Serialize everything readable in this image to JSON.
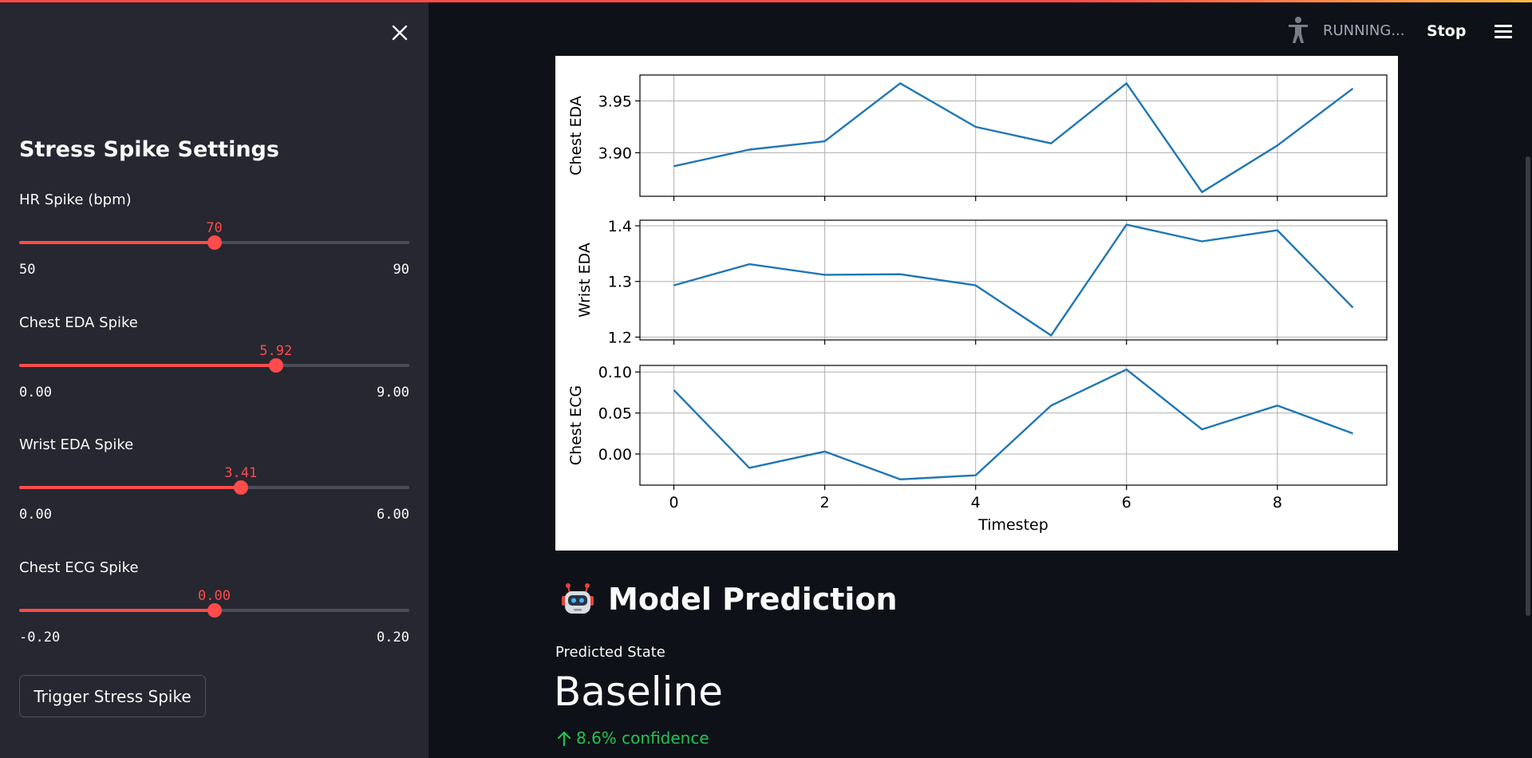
{
  "header": {
    "status": "RUNNING...",
    "stop_label": "Stop"
  },
  "sidebar": {
    "title": "Stress Spike Settings",
    "sliders": [
      {
        "label": "HR Spike (bpm)",
        "value": "70",
        "min": "50",
        "max": "90",
        "fraction": 0.5
      },
      {
        "label": "Chest EDA Spike",
        "value": "5.92",
        "min": "0.00",
        "max": "9.00",
        "fraction": 0.658
      },
      {
        "label": "Wrist EDA Spike",
        "value": "3.41",
        "min": "0.00",
        "max": "6.00",
        "fraction": 0.568
      },
      {
        "label": "Chest ECG Spike",
        "value": "0.00",
        "min": "-0.20",
        "max": "0.20",
        "fraction": 0.5
      }
    ],
    "trigger_label": "Trigger Stress Spike"
  },
  "main": {
    "section_title": "Model Prediction",
    "metric_label": "Predicted State",
    "metric_value": "Baseline",
    "metric_delta": "8.6% confidence"
  },
  "colors": {
    "accent": "#ff4b4b",
    "line": "#1f77b4",
    "positive": "#21c354"
  },
  "chart_data": {
    "type": "line",
    "xlabel": "Timestep",
    "x": [
      0,
      1,
      2,
      3,
      4,
      5,
      6,
      7,
      8,
      9
    ],
    "x_ticks": [
      "0",
      "2",
      "4",
      "6",
      "8"
    ],
    "xlim": [
      -0.45,
      9.45
    ],
    "grid": true,
    "panels": [
      {
        "ylabel": "Chest EDA",
        "ylim": [
          3.858,
          3.975
        ],
        "yticks": [
          "3.90",
          "3.95"
        ],
        "ytick_values": [
          3.9,
          3.95
        ],
        "values": [
          3.887,
          3.903,
          3.911,
          3.967,
          3.925,
          3.909,
          3.967,
          3.862,
          3.907,
          3.962
        ]
      },
      {
        "ylabel": "Wrist EDA",
        "ylim": [
          1.195,
          1.41
        ],
        "yticks": [
          "1.2",
          "1.3",
          "1.4"
        ],
        "ytick_values": [
          1.2,
          1.3,
          1.4
        ],
        "values": [
          1.293,
          1.331,
          1.312,
          1.313,
          1.293,
          1.203,
          1.402,
          1.372,
          1.392,
          1.253
        ]
      },
      {
        "ylabel": "Chest ECG",
        "ylim": [
          -0.038,
          0.108
        ],
        "yticks": [
          "0.00",
          "0.05",
          "0.10"
        ],
        "ytick_values": [
          0.0,
          0.05,
          0.1
        ],
        "values": [
          0.078,
          -0.017,
          0.003,
          -0.031,
          -0.026,
          0.059,
          0.103,
          0.03,
          0.059,
          0.025
        ]
      }
    ]
  }
}
